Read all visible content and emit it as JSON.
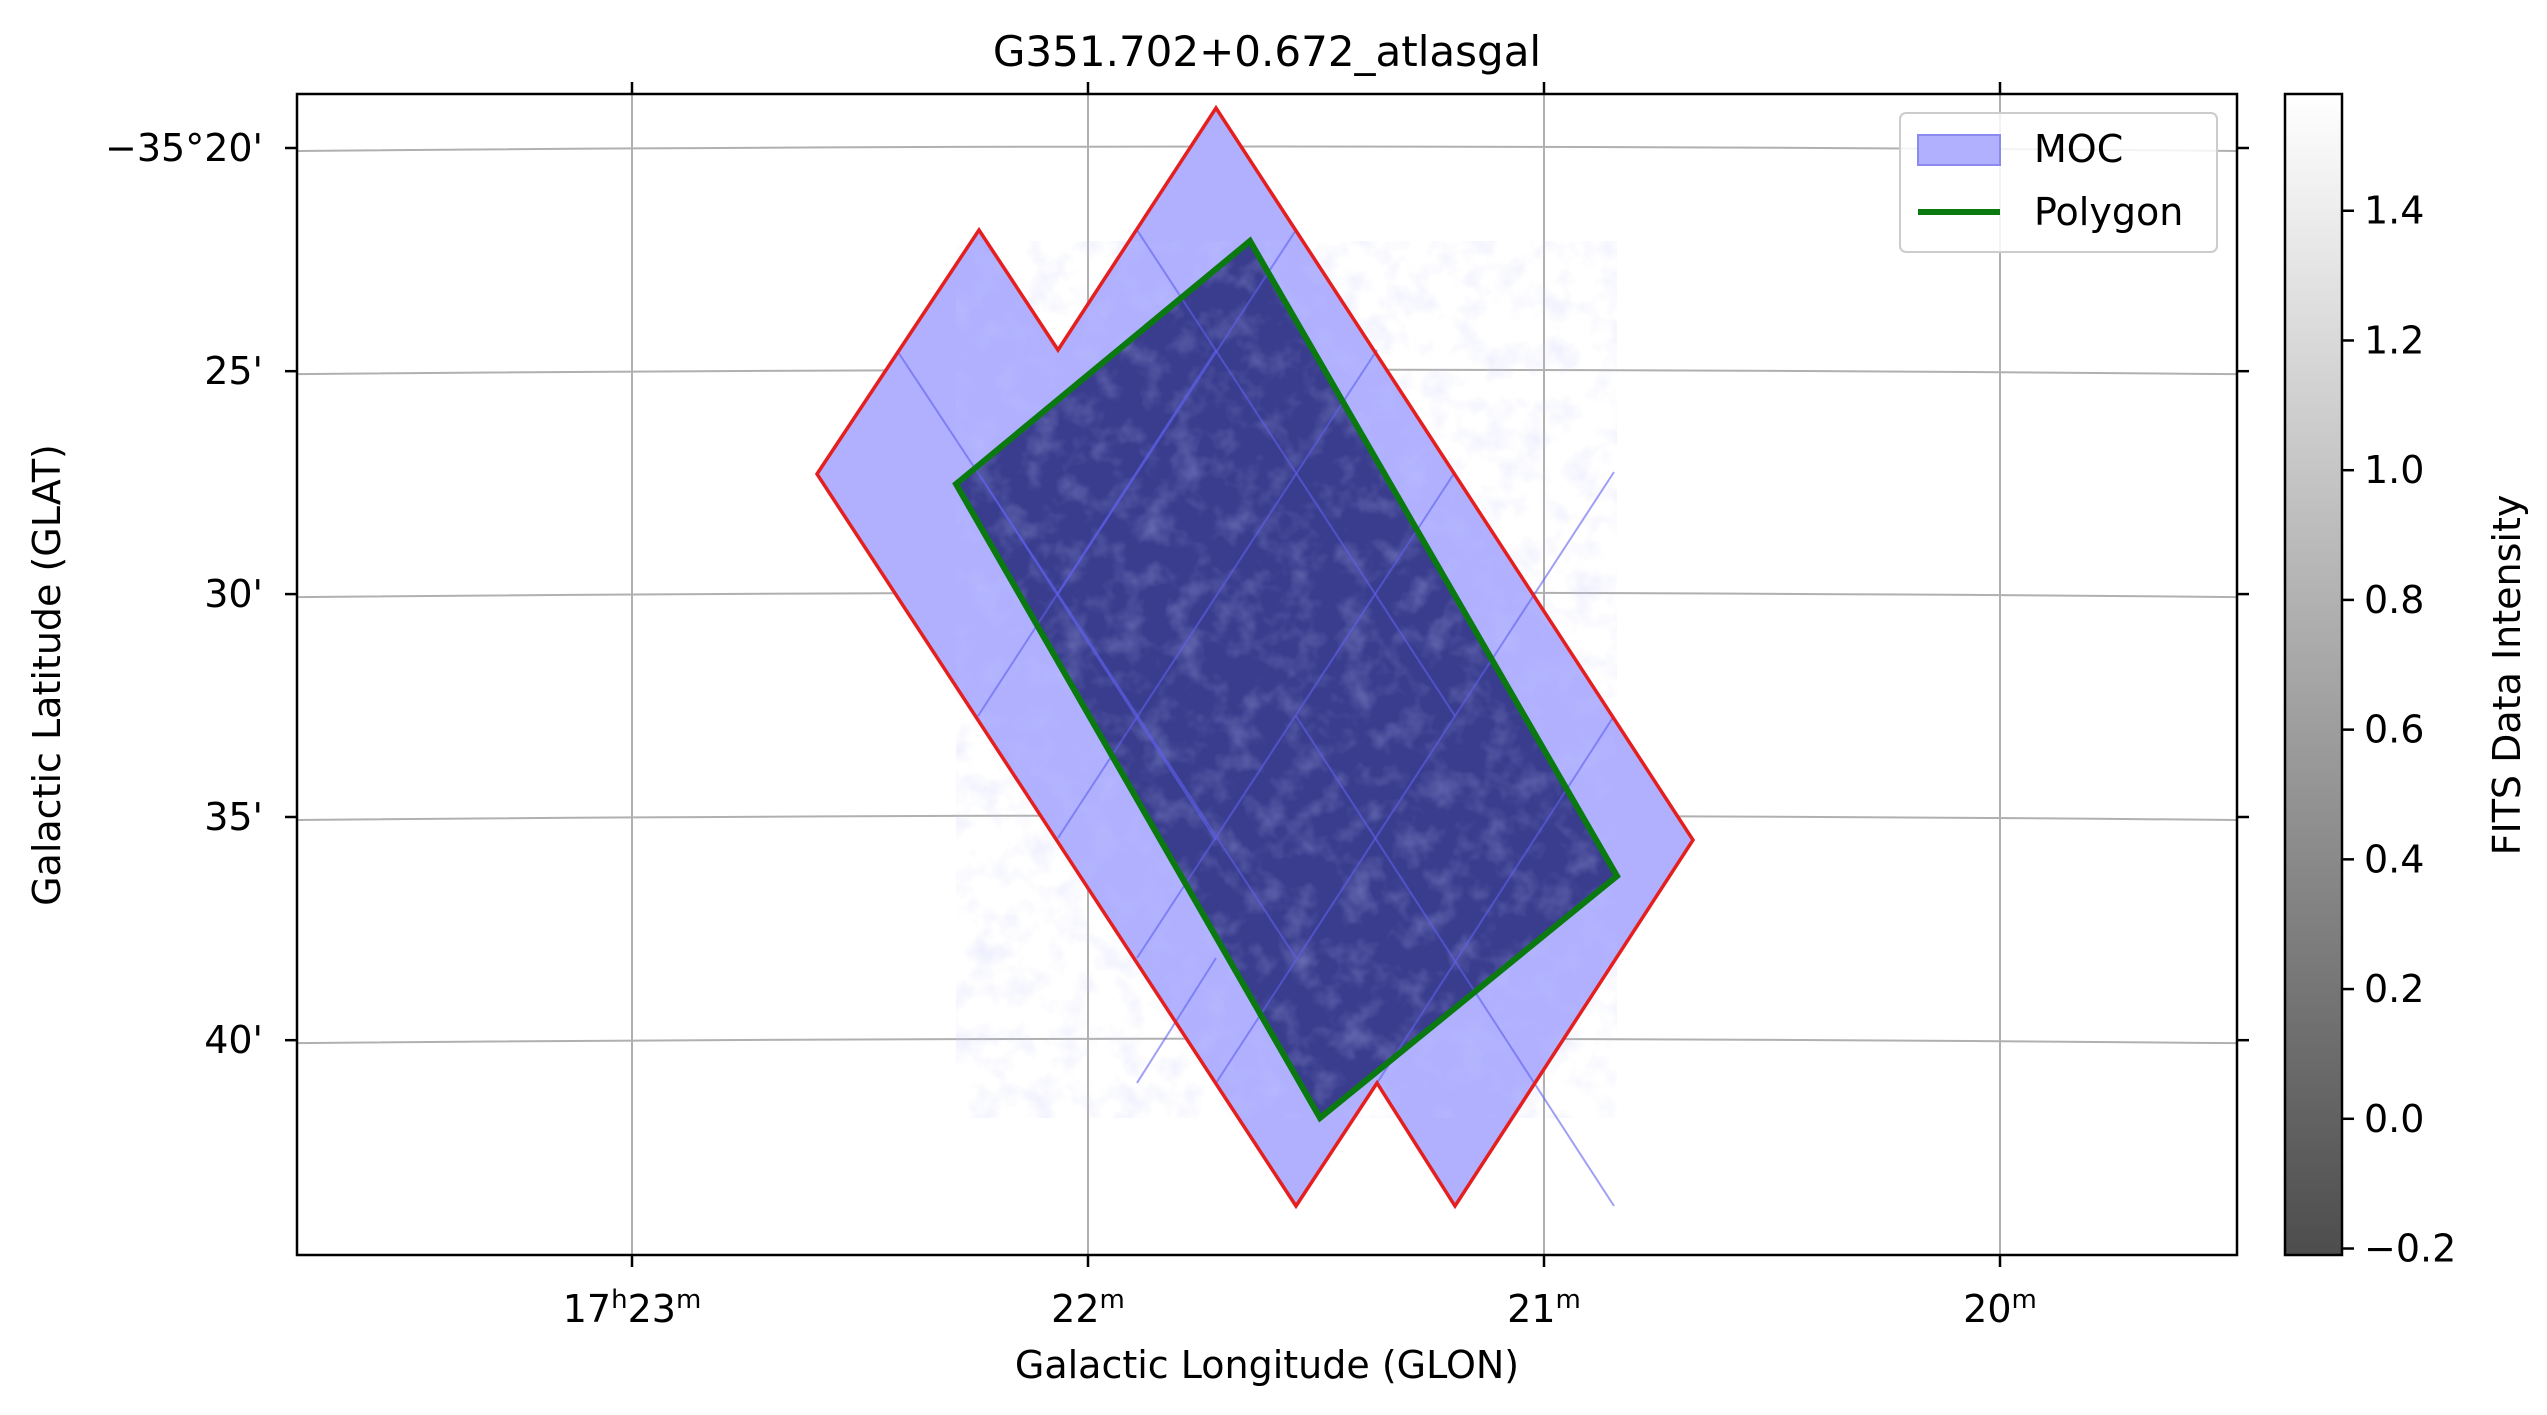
{
  "chart_data": {
    "type": "sky-map",
    "title": "G351.702+0.672_atlasgal",
    "xlabel": "Galactic Longitude (GLON)",
    "ylabel": "Galactic Latitude (GLAT)",
    "grid": true,
    "x_ticks": [
      {
        "pos": 23,
        "h": "17",
        "m": "23",
        "label": "17h23m"
      },
      {
        "pos": 22,
        "h": "",
        "m": "22",
        "label": "22m"
      },
      {
        "pos": 21,
        "h": "",
        "m": "21",
        "label": "21m"
      },
      {
        "pos": 20,
        "h": "",
        "m": "20",
        "label": "20m"
      }
    ],
    "y_ticks": [
      {
        "value": -35.3333,
        "label": "−35°20'"
      },
      {
        "value": -35.4167,
        "label": "25'"
      },
      {
        "value": -35.5,
        "label": "30'"
      },
      {
        "value": -35.5833,
        "label": "35'"
      },
      {
        "value": -35.6667,
        "label": "40'"
      }
    ],
    "legend": {
      "placement": "top-right",
      "entries": [
        {
          "label": "MOC",
          "kind": "patch",
          "color": "#b0b0ff"
        },
        {
          "label": "Polygon",
          "kind": "line",
          "color": "#008000"
        }
      ]
    },
    "colorbar": {
      "label": "FITS Data Intensity",
      "range": [
        -0.21,
        1.58
      ],
      "ticks": [
        {
          "value": -0.2,
          "label": "−0.2"
        },
        {
          "value": 0.0,
          "label": "0.0"
        },
        {
          "value": 0.2,
          "label": "0.2"
        },
        {
          "value": 0.4,
          "label": "0.4"
        },
        {
          "value": 0.6,
          "label": "0.6"
        },
        {
          "value": 0.8,
          "label": "0.8"
        },
        {
          "value": 1.0,
          "label": "1.0"
        },
        {
          "value": 1.2,
          "label": "1.2"
        },
        {
          "value": 1.4,
          "label": "1.4"
        }
      ]
    },
    "colors": {
      "moc_fill": "#b0b0ff",
      "moc_edge": "#e51f1f",
      "moc_grid": "#6060ee",
      "polygon": "#0a7a10",
      "image": "#3a3d8e"
    }
  }
}
